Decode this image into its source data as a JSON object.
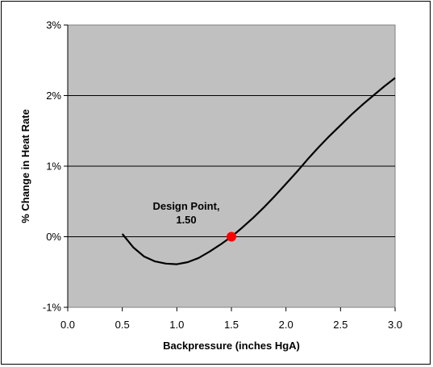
{
  "chart_data": {
    "type": "line",
    "title": "",
    "xlabel": "Backpressure (inches HgA)",
    "ylabel": "% Change in Heat Rate",
    "xlim": [
      0.0,
      3.0
    ],
    "ylim": [
      -1,
      3
    ],
    "x_ticks": [
      "0.0",
      "0.5",
      "1.0",
      "1.5",
      "2.0",
      "2.5",
      "3.0"
    ],
    "x_tick_values": [
      0.0,
      0.5,
      1.0,
      1.5,
      2.0,
      2.5,
      3.0
    ],
    "y_ticks": [
      "-1%",
      "0%",
      "1%",
      "2%",
      "3%"
    ],
    "y_tick_values": [
      -1,
      0,
      1,
      2,
      3
    ],
    "grid": "horizontal",
    "plot_background": "#c0c0c0",
    "series": [
      {
        "color": "#000000",
        "x": [
          0.5,
          0.6,
          0.7,
          0.8,
          0.9,
          1.0,
          1.1,
          1.2,
          1.3,
          1.4,
          1.5,
          1.6,
          1.7,
          1.8,
          1.9,
          2.0,
          2.1,
          2.2,
          2.3,
          2.4,
          2.5,
          2.6,
          2.7,
          2.8,
          2.9,
          3.0
        ],
        "y": [
          0.04,
          -0.15,
          -0.28,
          -0.35,
          -0.38,
          -0.39,
          -0.36,
          -0.3,
          -0.21,
          -0.11,
          0.0,
          0.13,
          0.27,
          0.42,
          0.58,
          0.75,
          0.92,
          1.1,
          1.27,
          1.43,
          1.58,
          1.73,
          1.87,
          2.0,
          2.13,
          2.25
        ]
      }
    ],
    "marker": {
      "x": 1.5,
      "y": 0.0,
      "color": "#ff0000"
    },
    "annotation": {
      "line1": "Design Point,",
      "line2": "1.50"
    }
  }
}
